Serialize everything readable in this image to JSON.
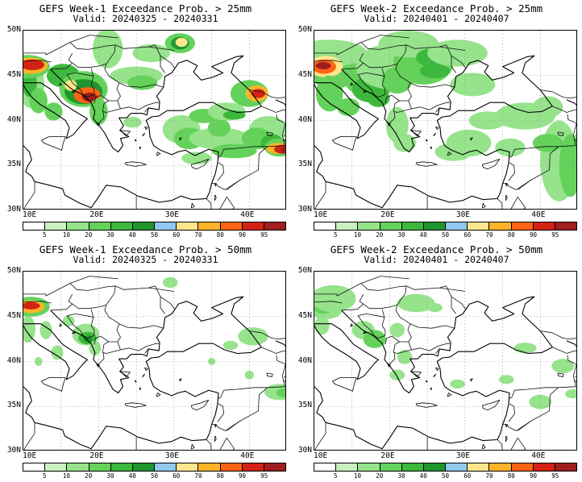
{
  "panels": [
    {
      "id": "w1-25",
      "title": "GEFS Week-1 Exceedance Prob. > 25mm",
      "valid": "Valid: 20240325 - 20240331"
    },
    {
      "id": "w2-25",
      "title": "GEFS Week-2 Exceedance Prob. > 25mm",
      "valid": "Valid: 20240401 - 20240407"
    },
    {
      "id": "w1-50",
      "title": "GEFS Week-1 Exceedance Prob. > 50mm",
      "valid": "Valid: 20240325 - 20240331"
    },
    {
      "id": "w2-50",
      "title": "GEFS Week-2 Exceedance Prob. > 50mm",
      "valid": "Valid: 20240401 - 20240407"
    }
  ],
  "axes": {
    "lat_labels": [
      "50N",
      "45N",
      "40N",
      "35N",
      "30N"
    ],
    "lon_labels": [
      "10E",
      "20E",
      "30E",
      "40E"
    ]
  },
  "colorbar": {
    "labels": [
      "5",
      "10",
      "20",
      "30",
      "40",
      "50",
      "60",
      "70",
      "80",
      "90",
      "95"
    ],
    "colors": [
      "#ffffff",
      "#c8f0c0",
      "#96e38c",
      "#64d25a",
      "#3cb93c",
      "#1e962d",
      "#90c8ef",
      "#ffe68c",
      "#ffb428",
      "#ff6414",
      "#d22314",
      "#a01e1e"
    ]
  }
}
